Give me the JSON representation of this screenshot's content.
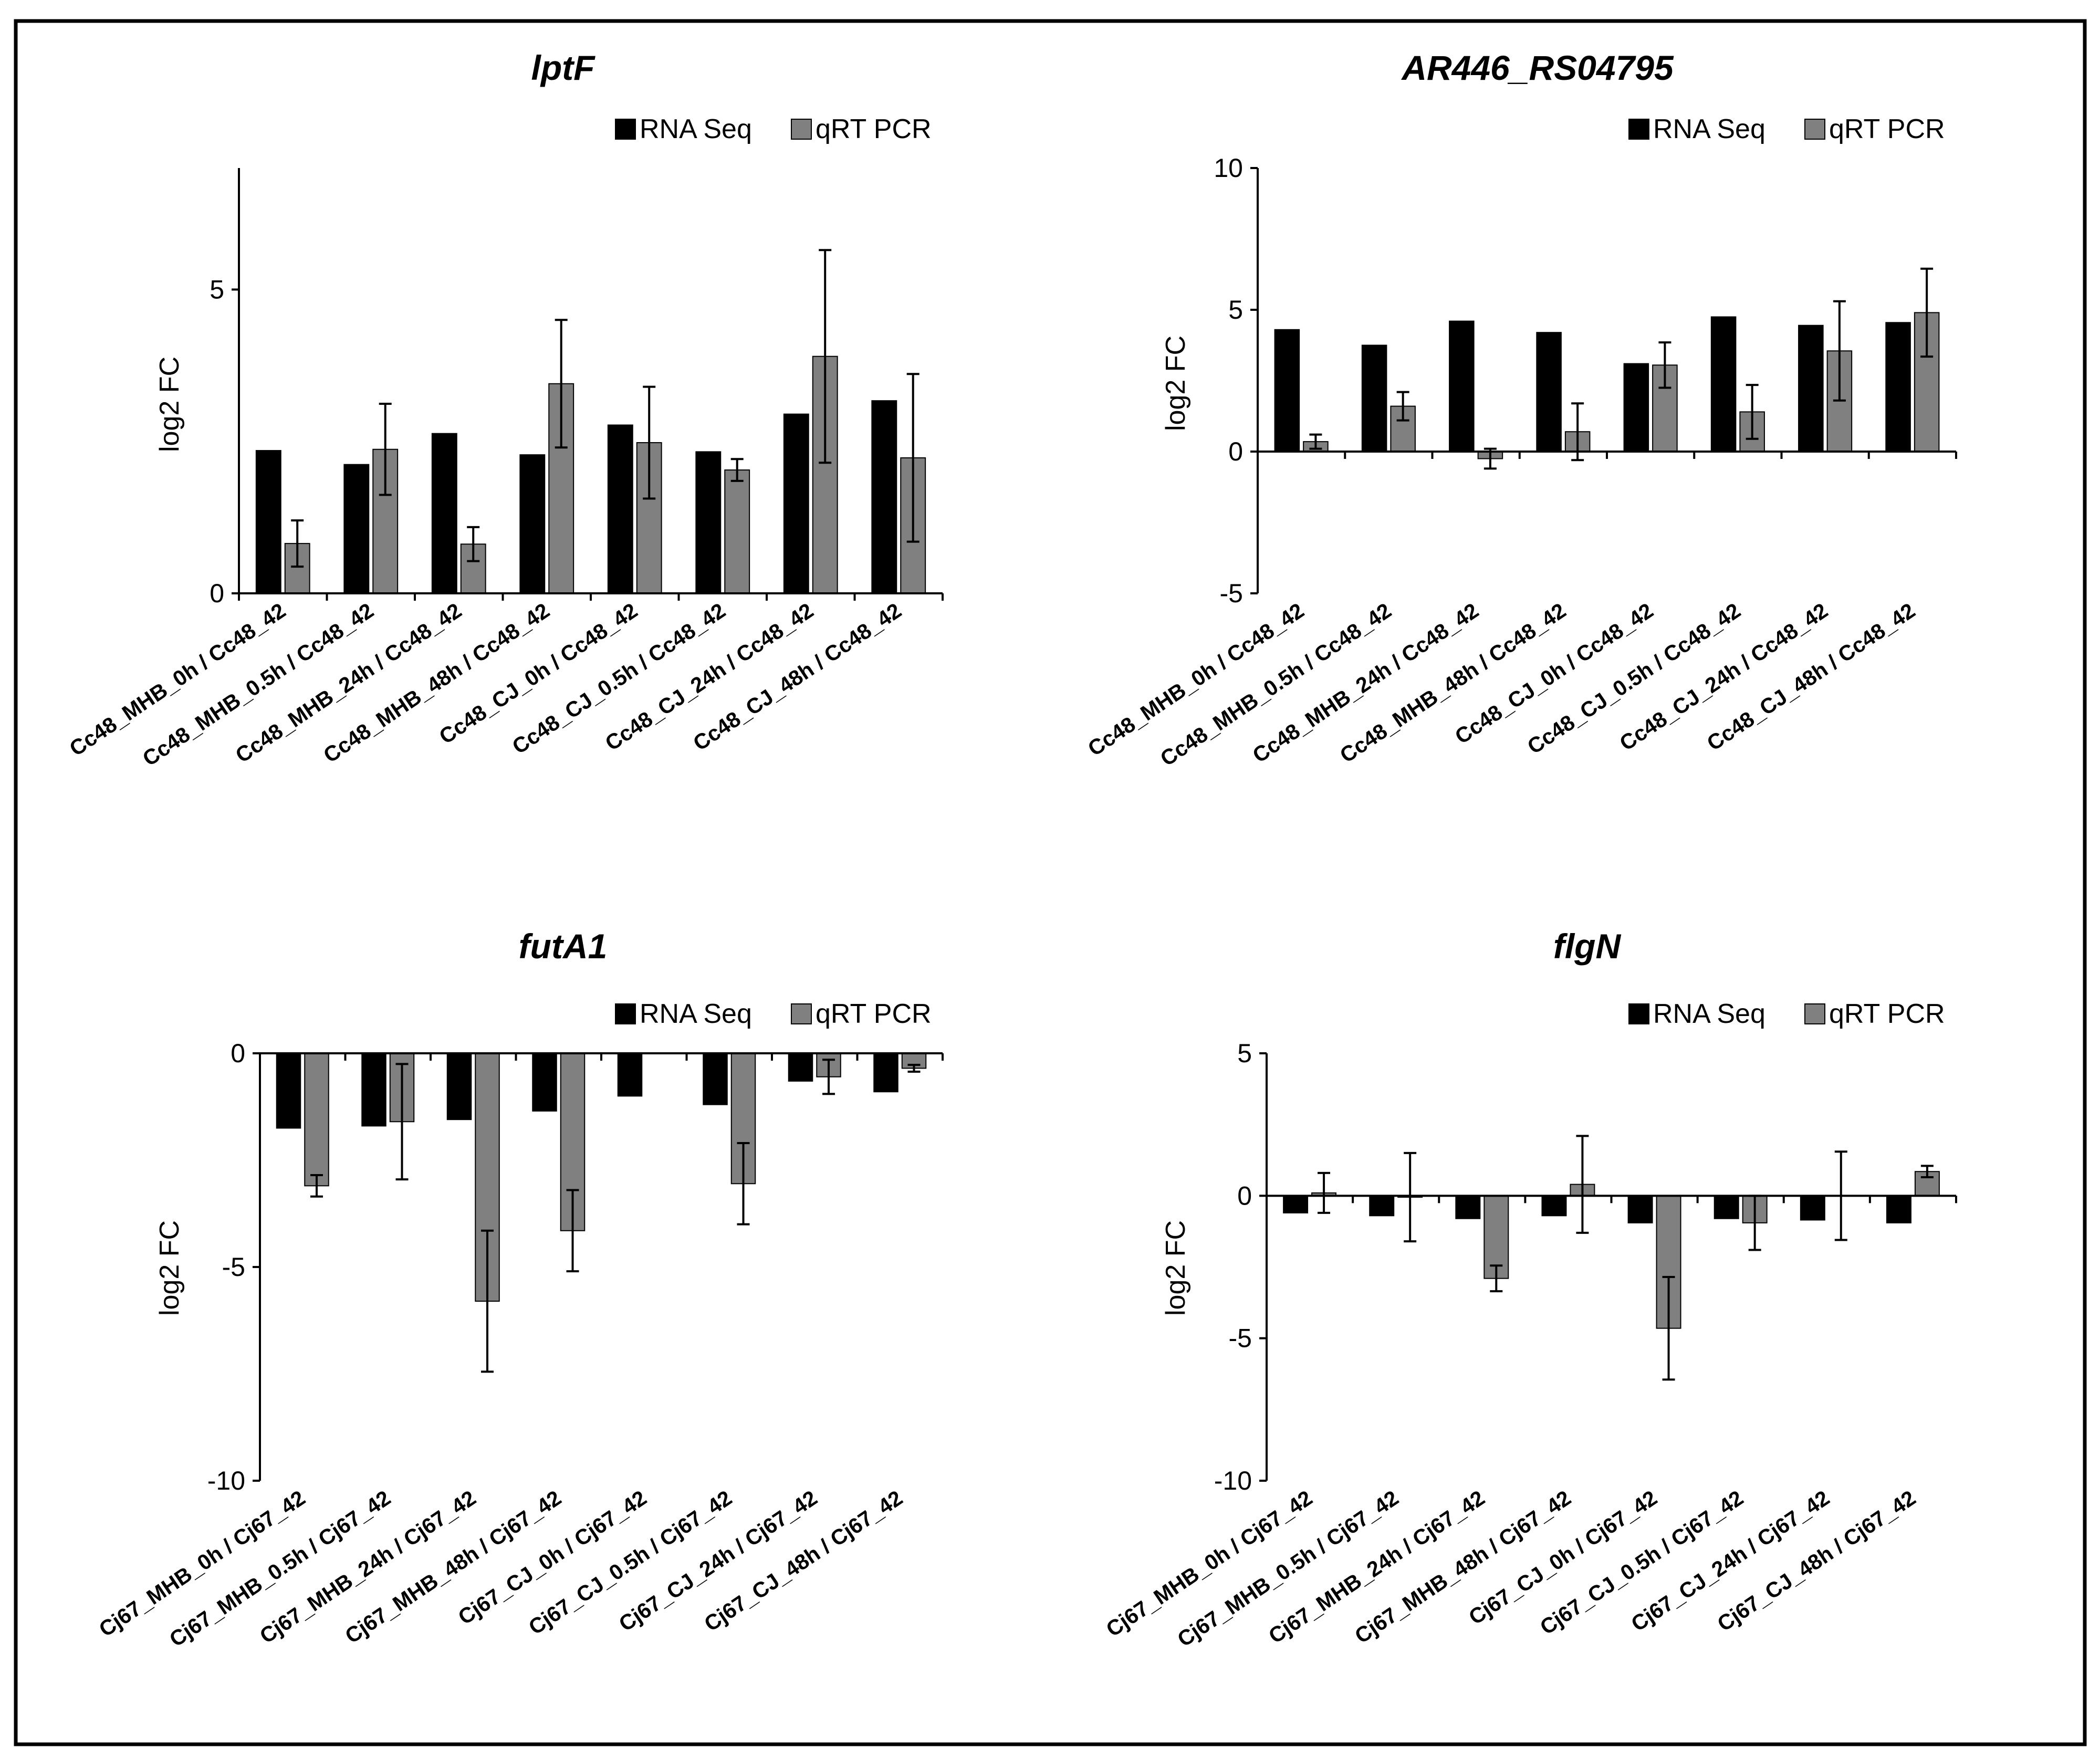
{
  "figure": {
    "border_color": "#000000",
    "background": "#ffffff"
  },
  "series_colors": {
    "RNA Seq": "#000000",
    "qRT PCR": "#808080"
  },
  "chart_data": [
    {
      "type": "bar",
      "title": "lptF",
      "ylabel": "log2 FC",
      "xlabel": "",
      "ylim": [
        0,
        7
      ],
      "yticks": [
        0,
        5
      ],
      "legend": [
        "RNA Seq",
        "qRT PCR"
      ],
      "legend_position": "top-right",
      "categories": [
        "Cc48_MHB_0h / Cc48_42",
        "Cc48_MHB_0.5h / Cc48_42",
        "Cc48_MHB_24h / Cc48_42",
        "Cc48_MHB_48h / Cc48_42",
        "Cc48_CJ_0h / Cc48_42",
        "Cc48_CJ_0.5h / Cc48_42",
        "Cc48_CJ_24h / Cc48_42",
        "Cc48_CJ_48h / Cc48_42"
      ],
      "series": [
        {
          "name": "RNA Seq",
          "values": [
            2.35,
            2.12,
            2.63,
            2.28,
            2.77,
            2.33,
            2.95,
            3.17
          ]
        },
        {
          "name": "qRT PCR",
          "values": [
            0.82,
            2.37,
            0.81,
            3.45,
            2.48,
            2.03,
            3.9,
            2.23
          ],
          "errors": [
            0.38,
            0.75,
            0.28,
            1.05,
            0.92,
            0.18,
            1.75,
            1.38
          ]
        }
      ]
    },
    {
      "type": "bar",
      "title": "AR446_RS04795",
      "ylabel": "log2 FC",
      "xlabel": "",
      "ylim": [
        -5,
        10
      ],
      "yticks": [
        -5,
        0,
        5,
        10
      ],
      "legend": [
        "RNA Seq",
        "qRT PCR"
      ],
      "legend_position": "top-right",
      "categories": [
        "Cc48_MHB_0h / Cc48_42",
        "Cc48_MHB_0.5h / Cc48_42",
        "Cc48_MHB_24h / Cc48_42",
        "Cc48_MHB_48h / Cc48_42",
        "Cc48_CJ_0h / Cc48_42",
        "Cc48_CJ_0.5h / Cc48_42",
        "Cc48_CJ_24h / Cc48_42",
        "Cc48_CJ_48h / Cc48_42"
      ],
      "series": [
        {
          "name": "RNA Seq",
          "values": [
            4.3,
            3.75,
            4.6,
            4.2,
            3.1,
            4.75,
            4.45,
            4.55
          ]
        },
        {
          "name": "qRT PCR",
          "values": [
            0.35,
            1.6,
            -0.25,
            0.7,
            3.05,
            1.4,
            3.55,
            4.9
          ],
          "errors": [
            0.25,
            0.5,
            0.35,
            1.0,
            0.8,
            0.95,
            1.75,
            1.55
          ]
        }
      ]
    },
    {
      "type": "bar",
      "title": "futA1",
      "ylabel": "log2 FC",
      "xlabel": "",
      "ylim": [
        -10,
        0
      ],
      "yticks": [
        -10,
        -5,
        0
      ],
      "legend": [
        "RNA Seq",
        "qRT PCR"
      ],
      "legend_position": "top-right",
      "categories": [
        "Cj67_MHB_0h / Cj67_42",
        "Cj67_MHB_0.5h / Cj67_42",
        "Cj67_MHB_24h / Cj67_42",
        "Cj67_MHB_48h / Cj67_42",
        "Cj67_CJ_0h / Cj67_42",
        "Cj67_CJ_0.5h / Cj67_42",
        "Cj67_CJ_24h / Cj67_42",
        "Cj67_CJ_48h / Cj67_42"
      ],
      "series": [
        {
          "name": "RNA Seq",
          "values": [
            -1.75,
            -1.7,
            -1.55,
            -1.35,
            -1.0,
            -1.2,
            -0.65,
            -0.9
          ]
        },
        {
          "name": "qRT PCR",
          "values": [
            -3.1,
            -1.6,
            -5.8,
            -4.15,
            0,
            -3.05,
            -0.55,
            -0.35
          ],
          "errors": [
            0.25,
            1.35,
            1.65,
            0.95,
            0,
            0.95,
            0.4,
            0.08
          ]
        }
      ]
    },
    {
      "type": "bar",
      "title": "flgN",
      "ylabel": "log2 FC",
      "xlabel": "",
      "ylim": [
        -10,
        5
      ],
      "yticks": [
        -10,
        -5,
        0,
        5
      ],
      "legend": [
        "RNA Seq",
        "qRT PCR"
      ],
      "legend_position": "top-right",
      "categories": [
        "Cj67_MHB_0h / Cj67_42",
        "Cj67_MHB_0.5h / Cj67_42",
        "Cj67_MHB_24h / Cj67_42",
        "Cj67_MHB_48h / Cj67_42",
        "Cj67_CJ_0h / Cj67_42",
        "Cj67_CJ_0.5h / Cj67_42",
        "Cj67_CJ_24h / Cj67_42",
        "Cj67_CJ_48h / Cj67_42"
      ],
      "series": [
        {
          "name": "RNA Seq",
          "values": [
            -0.6,
            -0.7,
            -0.8,
            -0.7,
            -0.95,
            -0.8,
            -0.85,
            -0.95
          ]
        },
        {
          "name": "qRT PCR",
          "values": [
            0.1,
            -0.05,
            -2.9,
            0.4,
            -4.65,
            -0.95,
            0,
            0.85
          ],
          "errors": [
            0.7,
            1.55,
            0.45,
            1.7,
            1.8,
            0.95,
            1.55,
            0.2
          ]
        }
      ]
    }
  ]
}
